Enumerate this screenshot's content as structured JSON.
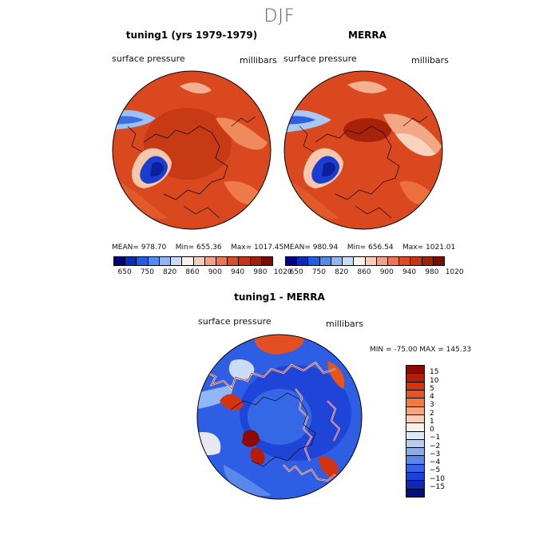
{
  "figure": {
    "title": "DJF",
    "panel1": {
      "title": "tuning1 (yrs 1979-1979)",
      "variable": "surface pressure",
      "units": "millibars",
      "mean_label": "MEAN= 978.70",
      "min_label": "Min= 655.36",
      "max_label": "Max= 1017.45"
    },
    "panel2": {
      "title": "MERRA",
      "variable": "surface pressure",
      "units": "millibars",
      "mean_label": "MEAN= 980.94",
      "min_label": "Min= 656.54",
      "max_label": "Max= 1021.01"
    },
    "panel3": {
      "title": "tuning1 - MERRA",
      "variable": "surface pressure",
      "units": "millibars",
      "minmax_label": "MIN = -75.00  MAX = 145.33"
    }
  },
  "colorbar_top": {
    "colors": [
      "#000080",
      "#0a2fb4",
      "#1f5ee0",
      "#4d8cf2",
      "#8fb7f7",
      "#c8dcf8",
      "#f7f2ef",
      "#f6cdb8",
      "#f3a184",
      "#ee7452",
      "#e04b24",
      "#c83314",
      "#a32008",
      "#7a0d00"
    ],
    "tick_labels": [
      "650",
      "750",
      "820",
      "860",
      "900",
      "940",
      "980",
      "1020"
    ]
  },
  "colorbar_diff": {
    "colors": [
      "#8c0a00",
      "#b51d06",
      "#d4330f",
      "#e8541e",
      "#f17a44",
      "#f5a47c",
      "#f9cfb7",
      "#faf0ea",
      "#dde8f7",
      "#b6cdf5",
      "#86acf1",
      "#5a87ec",
      "#3363e6",
      "#1a43d6",
      "#0d27b6",
      "#00107a"
    ],
    "tick_labels": [
      "15",
      "10",
      "5",
      "4",
      "3",
      "2",
      "1",
      "0",
      "−1",
      "−2",
      "−3",
      "−4",
      "−5",
      "−10",
      "−15"
    ]
  }
}
